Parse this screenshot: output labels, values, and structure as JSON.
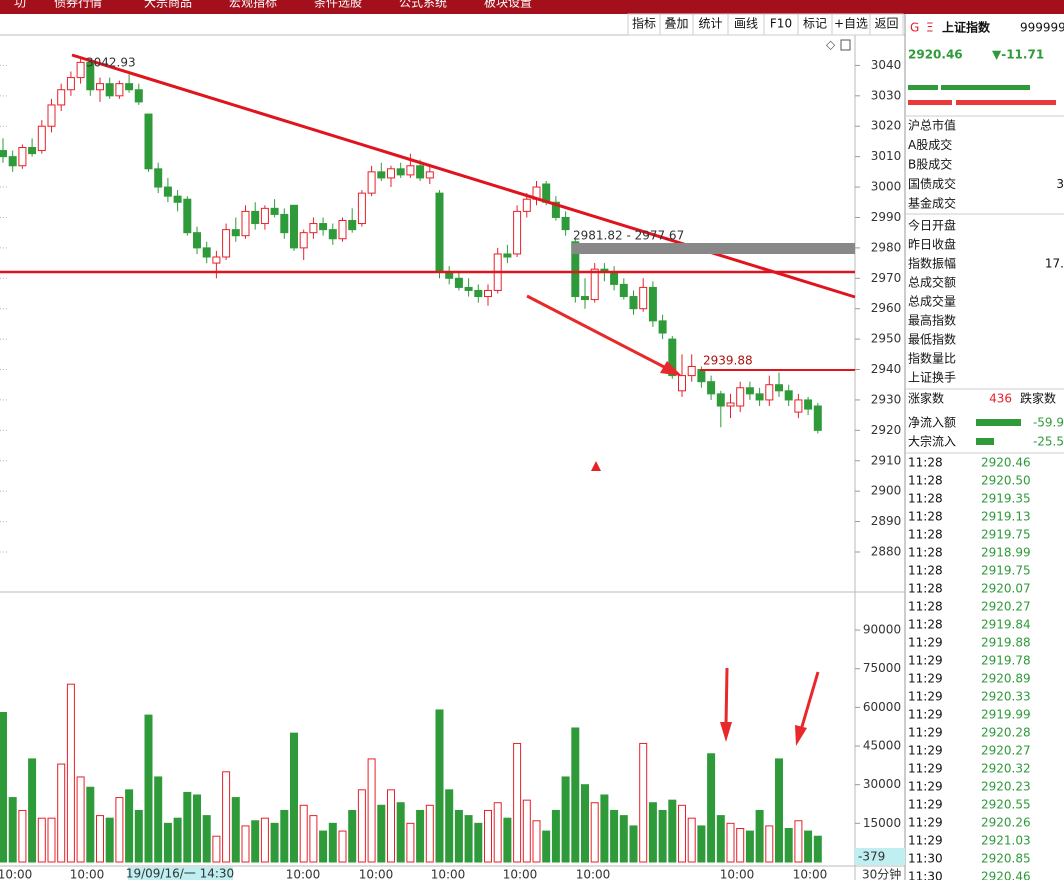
{
  "menu": [
    "功",
    "债券行情",
    "大宗商品",
    "宏观指标",
    "条件选股",
    "公式系统",
    "板块设置"
  ],
  "toolbar": [
    "指标",
    "叠加",
    "统计",
    "画线",
    "F10",
    "标记",
    "+自选",
    "返回"
  ],
  "chart_data": {
    "type": "candlestick",
    "open": [
      3012,
      3010,
      3007,
      3013,
      3012,
      3020,
      3027,
      3032,
      3036,
      3041,
      3032,
      3034,
      3030,
      3034,
      3032,
      3024,
      3006,
      3000,
      2997,
      2996,
      2985,
      2980,
      2975,
      2977,
      2986,
      2984,
      2992,
      2988,
      2993,
      2991,
      2994,
      2980,
      2985,
      2988,
      2986,
      2983,
      2989,
      2988,
      2998,
      3005,
      3003,
      3006,
      3004,
      3007,
      3003,
      2998,
      2972,
      2970,
      2967,
      2966,
      2964,
      2966,
      2978,
      2978,
      2992,
      2996,
      3001,
      2995,
      2990,
      2982,
      2964,
      2963,
      2973,
      2972,
      2968,
      2964,
      2960,
      2967,
      2956,
      2950,
      2933,
      2938,
      2940,
      2936,
      2932,
      2928,
      2928,
      2934,
      2932,
      2930,
      2935,
      2933,
      2926,
      2930,
      2928
    ],
    "high": [
      3016,
      3012,
      3014,
      3016,
      3022,
      3029,
      3034,
      3038,
      3042.93,
      3042,
      3036,
      3036,
      3035,
      3037,
      3034,
      3024,
      3008,
      3003,
      2999,
      2997,
      2987,
      2982,
      2979,
      2988,
      2990,
      2994,
      2995,
      2994,
      2996,
      2993,
      2994,
      2986,
      2990,
      2990,
      2988,
      2990,
      2993,
      2999,
      3007,
      3008,
      3007,
      3008,
      3011,
      3009,
      3007,
      2999,
      2974,
      2972,
      2970,
      2968,
      2968,
      2980,
      2981,
      2994,
      2998,
      3002,
      3002,
      2997,
      2992,
      2983,
      2970,
      2975,
      2975,
      2974,
      2970,
      2966,
      2970,
      2969,
      2958,
      2951,
      2945,
      2945,
      2941,
      2938,
      2933,
      2932,
      2936,
      2936,
      2934,
      2938,
      2939,
      2935,
      2932,
      2931,
      2929
    ],
    "low": [
      3008,
      3005,
      3006,
      3010,
      3011,
      3018,
      3025,
      3030,
      3034,
      3030,
      3028,
      3029,
      3029,
      3031,
      3027,
      3005,
      2998,
      2995,
      2992,
      2984,
      2978,
      2975,
      2970,
      2976,
      2982,
      2983,
      2986,
      2986,
      2990,
      2983,
      2979,
      2976,
      2983,
      2984,
      2981,
      2982,
      2985,
      2987,
      2997,
      3002,
      3000,
      3003,
      3003,
      3002,
      3001,
      2970,
      2968,
      2966,
      2964,
      2962,
      2961,
      2965,
      2975,
      2977,
      2990,
      2994,
      2994,
      2989,
      2984,
      2962,
      2960,
      2962,
      2969,
      2966,
      2963,
      2958,
      2959,
      2954,
      2950,
      2937,
      2931,
      2936,
      2934,
      2930,
      2921,
      2924,
      2926,
      2930,
      2928,
      2928,
      2931,
      2928,
      2924,
      2925,
      2919
    ],
    "close": [
      3010,
      3007,
      3013,
      3011,
      3020,
      3027,
      3032,
      3036,
      3041,
      3032,
      3034,
      3030,
      3034,
      3032,
      3028,
      3006,
      3000,
      2997,
      2995,
      2985,
      2980,
      2977,
      2977,
      2986,
      2984,
      2992,
      2988,
      2993,
      2991,
      2985,
      2980,
      2985,
      2988,
      2986,
      2983,
      2989,
      2986,
      2998,
      3005,
      3003,
      3006,
      3004,
      3007,
      3003,
      3005,
      2972,
      2970,
      2967,
      2966,
      2964,
      2966,
      2978,
      2977,
      2992,
      2996,
      3000,
      2995,
      2990,
      2986,
      2964,
      2963,
      2973,
      2972,
      2968,
      2964,
      2960,
      2967,
      2956,
      2952,
      2938,
      2938,
      2941,
      2936,
      2932,
      2928,
      2929,
      2934,
      2932,
      2930,
      2935,
      2933,
      2930,
      2930,
      2927,
      2920
    ],
    "up_color": "#e8202a",
    "down_color": "#2e9a3a",
    "ylim": [
      2867.5,
      3050
    ],
    "yticks": [
      2880,
      2890,
      2900,
      2910,
      2920,
      2930,
      2940,
      2950,
      2960,
      2970,
      2980,
      2990,
      3000,
      3010,
      3020,
      3030,
      3040
    ],
    "annotations": [
      "3042.93",
      "2981.82 - 2977.67",
      "2939.88"
    ],
    "volume": {
      "type": "bar",
      "values": [
        58000,
        25000,
        20000,
        40000,
        17000,
        17000,
        38000,
        69000,
        33000,
        29000,
        18000,
        17000,
        25000,
        28000,
        20000,
        57000,
        33000,
        15000,
        17000,
        27000,
        26000,
        18000,
        10000,
        35000,
        25000,
        14000,
        16000,
        17000,
        15000,
        20000,
        50000,
        22000,
        18000,
        12000,
        15000,
        12000,
        20000,
        28000,
        40000,
        22000,
        28000,
        23000,
        15000,
        20000,
        22000,
        59000,
        28000,
        20000,
        18000,
        15000,
        20000,
        23000,
        17000,
        46000,
        24000,
        16000,
        12000,
        20000,
        33000,
        52000,
        30000,
        23000,
        26000,
        20000,
        18000,
        14000,
        46000,
        23000,
        20000,
        24000,
        22000,
        17000,
        14000,
        42000,
        18000,
        15000,
        13000,
        12000,
        20000,
        14000,
        40000,
        13000,
        16000,
        12000,
        10000
      ],
      "ylim": [
        0,
        103600
      ],
      "yticks": [
        15000,
        30000,
        45000,
        60000,
        75000,
        90000
      ]
    },
    "x_labels": [
      "10:00",
      "10:00",
      "10:00",
      "10:00",
      "10:00",
      "10:00",
      "10:00",
      "10:00",
      "10:00"
    ],
    "cursor_label": "19/09/16/一 14:30",
    "cursor_value": "-379",
    "period": "30分钟"
  },
  "panel": {
    "icon": "G",
    "menu_icon": "Ξ",
    "name": "上证指数",
    "code": "999999",
    "price": "2920.46",
    "change": "▼-11.71",
    "rows": [
      {
        "label": "沪总市值"
      },
      {
        "label": "A股成交"
      },
      {
        "label": "B股成交"
      },
      {
        "label": "国债成交",
        "value": "3"
      },
      {
        "label": "基金成交"
      },
      {
        "label": "今日开盘"
      },
      {
        "label": "昨日收盘"
      },
      {
        "label": "指数振幅",
        "value": "17."
      },
      {
        "label": "总成交额"
      },
      {
        "label": "总成交量"
      },
      {
        "label": "最高指数"
      },
      {
        "label": "最低指数"
      },
      {
        "label": "指数量比"
      },
      {
        "label": "上证换手"
      }
    ],
    "rise_label": "涨家数",
    "rise_count": 436,
    "fall_label": "跌家数",
    "flows": [
      {
        "label": "净流入额",
        "value": "-59.9"
      },
      {
        "label": "大宗流入",
        "value": "-25.5"
      }
    ],
    "ticks": [
      [
        "11:28",
        "2920.46"
      ],
      [
        "11:28",
        "2920.50"
      ],
      [
        "11:28",
        "2919.35"
      ],
      [
        "11:28",
        "2919.13"
      ],
      [
        "11:28",
        "2919.75"
      ],
      [
        "11:28",
        "2918.99"
      ],
      [
        "11:28",
        "2919.75"
      ],
      [
        "11:28",
        "2920.07"
      ],
      [
        "11:28",
        "2920.27"
      ],
      [
        "11:28",
        "2919.84"
      ],
      [
        "11:29",
        "2919.88"
      ],
      [
        "11:29",
        "2919.78"
      ],
      [
        "11:29",
        "2920.89"
      ],
      [
        "11:29",
        "2920.33"
      ],
      [
        "11:29",
        "2919.99"
      ],
      [
        "11:29",
        "2920.28"
      ],
      [
        "11:29",
        "2920.27"
      ],
      [
        "11:29",
        "2920.32"
      ],
      [
        "11:29",
        "2920.23"
      ],
      [
        "11:29",
        "2920.55"
      ],
      [
        "11:29",
        "2920.26"
      ],
      [
        "11:29",
        "2921.03"
      ],
      [
        "11:30",
        "2920.85"
      ],
      [
        "11:30",
        "2920.46"
      ]
    ]
  }
}
